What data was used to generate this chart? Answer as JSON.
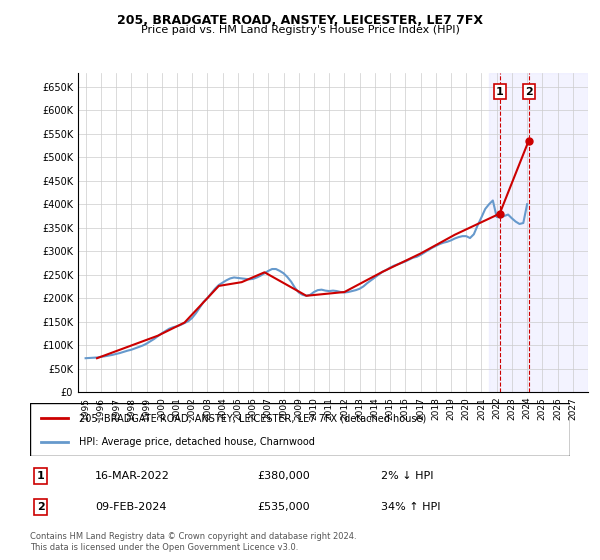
{
  "title": "205, BRADGATE ROAD, ANSTEY, LEICESTER, LE7 7FX",
  "subtitle": "Price paid vs. HM Land Registry's House Price Index (HPI)",
  "ylabel_ticks": [
    "£0",
    "£50K",
    "£100K",
    "£150K",
    "£200K",
    "£250K",
    "£300K",
    "£350K",
    "£400K",
    "£450K",
    "£500K",
    "£550K",
    "£600K",
    "£650K"
  ],
  "ytick_values": [
    0,
    50000,
    100000,
    150000,
    200000,
    250000,
    300000,
    350000,
    400000,
    450000,
    500000,
    550000,
    600000,
    650000
  ],
  "ylim": [
    0,
    680000
  ],
  "xlim_start": 1994.5,
  "xlim_end": 2028.0,
  "x_tick_years": [
    1995,
    1996,
    1997,
    1998,
    1999,
    2000,
    2001,
    2002,
    2003,
    2004,
    2005,
    2006,
    2007,
    2008,
    2009,
    2010,
    2011,
    2012,
    2013,
    2014,
    2015,
    2016,
    2017,
    2018,
    2019,
    2020,
    2021,
    2022,
    2023,
    2024,
    2025,
    2026,
    2027
  ],
  "hpi_color": "#6699cc",
  "price_color": "#cc0000",
  "annotation_box_color": "#ffcccc",
  "annotation_line_color": "#cc0000",
  "background_color": "#ffffff",
  "grid_color": "#cccccc",
  "legend_label_red": "205, BRADGATE ROAD, ANSTEY, LEICESTER, LE7 7FX (detached house)",
  "legend_label_blue": "HPI: Average price, detached house, Charnwood",
  "note1_num": "1",
  "note1_date": "16-MAR-2022",
  "note1_price": "£380,000",
  "note1_hpi": "2% ↓ HPI",
  "note2_num": "2",
  "note2_date": "09-FEB-2024",
  "note2_price": "£535,000",
  "note2_hpi": "34% ↑ HPI",
  "footer": "Contains HM Land Registry data © Crown copyright and database right 2024.\nThis data is licensed under the Open Government Licence v3.0.",
  "hpi_data_x": [
    1995.0,
    1995.25,
    1995.5,
    1995.75,
    1996.0,
    1996.25,
    1996.5,
    1996.75,
    1997.0,
    1997.25,
    1997.5,
    1997.75,
    1998.0,
    1998.25,
    1998.5,
    1998.75,
    1999.0,
    1999.25,
    1999.5,
    1999.75,
    2000.0,
    2000.25,
    2000.5,
    2000.75,
    2001.0,
    2001.25,
    2001.5,
    2001.75,
    2002.0,
    2002.25,
    2002.5,
    2002.75,
    2003.0,
    2003.25,
    2003.5,
    2003.75,
    2004.0,
    2004.25,
    2004.5,
    2004.75,
    2005.0,
    2005.25,
    2005.5,
    2005.75,
    2006.0,
    2006.25,
    2006.5,
    2006.75,
    2007.0,
    2007.25,
    2007.5,
    2007.75,
    2008.0,
    2008.25,
    2008.5,
    2008.75,
    2009.0,
    2009.25,
    2009.5,
    2009.75,
    2010.0,
    2010.25,
    2010.5,
    2010.75,
    2011.0,
    2011.25,
    2011.5,
    2011.75,
    2012.0,
    2012.25,
    2012.5,
    2012.75,
    2013.0,
    2013.25,
    2013.5,
    2013.75,
    2014.0,
    2014.25,
    2014.5,
    2014.75,
    2015.0,
    2015.25,
    2015.5,
    2015.75,
    2016.0,
    2016.25,
    2016.5,
    2016.75,
    2017.0,
    2017.25,
    2017.5,
    2017.75,
    2018.0,
    2018.25,
    2018.5,
    2018.75,
    2019.0,
    2019.25,
    2019.5,
    2019.75,
    2020.0,
    2020.25,
    2020.5,
    2020.75,
    2021.0,
    2021.25,
    2021.5,
    2021.75,
    2022.0,
    2022.25,
    2022.5,
    2022.75,
    2023.0,
    2023.25,
    2023.5,
    2023.75,
    2024.0
  ],
  "hpi_data_y": [
    72000,
    72500,
    73000,
    73500,
    75000,
    76000,
    77500,
    79000,
    81000,
    83000,
    85500,
    88000,
    90000,
    93000,
    96000,
    99000,
    103000,
    108000,
    113000,
    119000,
    125000,
    130000,
    135000,
    138000,
    140000,
    143000,
    147000,
    151000,
    158000,
    168000,
    180000,
    192000,
    200000,
    210000,
    220000,
    228000,
    233000,
    238000,
    242000,
    244000,
    243000,
    242000,
    241000,
    240000,
    241000,
    244000,
    248000,
    253000,
    258000,
    262000,
    262000,
    258000,
    253000,
    245000,
    235000,
    222000,
    212000,
    207000,
    205000,
    207000,
    213000,
    217000,
    218000,
    216000,
    215000,
    216000,
    215000,
    213000,
    212000,
    213000,
    215000,
    217000,
    220000,
    225000,
    232000,
    238000,
    244000,
    250000,
    256000,
    260000,
    265000,
    269000,
    272000,
    275000,
    278000,
    282000,
    286000,
    288000,
    292000,
    297000,
    302000,
    307000,
    311000,
    315000,
    318000,
    320000,
    323000,
    327000,
    330000,
    332000,
    332000,
    328000,
    336000,
    355000,
    372000,
    390000,
    400000,
    408000,
    373000,
    372000,
    375000,
    378000,
    370000,
    363000,
    358000,
    360000,
    400000
  ],
  "price_data_x": [
    1995.75,
    1999.75,
    2001.5,
    2003.75,
    2005.25,
    2006.75,
    2009.5,
    2012.0,
    2014.5,
    2017.0,
    2019.25,
    2022.2,
    2024.1
  ],
  "price_data_y": [
    72000,
    120000,
    148000,
    226000,
    234000,
    255000,
    205000,
    213000,
    256000,
    295000,
    335000,
    380000,
    535000
  ],
  "sale1_x": 2022.2,
  "sale1_y": 380000,
  "sale1_label": "1",
  "sale2_x": 2024.1,
  "sale2_y": 535000,
  "sale2_label": "2",
  "shaded_region_start": 2021.5,
  "shaded_region_end": 2028.0,
  "shaded_color": "#e8e8ff"
}
